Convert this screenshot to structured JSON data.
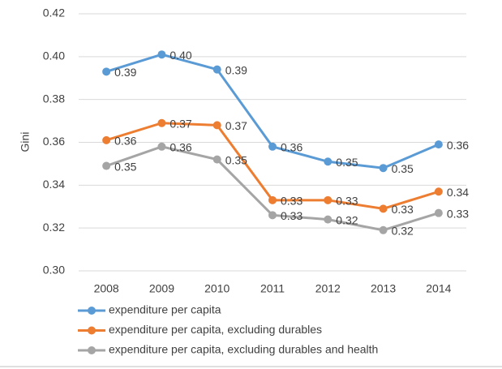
{
  "chart_data": {
    "type": "line",
    "y_label": "Gini",
    "categories": [
      "2008",
      "2009",
      "2010",
      "2011",
      "2012",
      "2013",
      "2014"
    ],
    "ylim": [
      0.3,
      0.42
    ],
    "yticks": [
      {
        "value": 0.3,
        "label": "0.30"
      },
      {
        "value": 0.32,
        "label": "0.32"
      },
      {
        "value": 0.34,
        "label": "0.34"
      },
      {
        "value": 0.36,
        "label": "0.36"
      },
      {
        "value": 0.38,
        "label": "0.38"
      },
      {
        "value": 0.4,
        "label": "0.40"
      },
      {
        "value": 0.42,
        "label": "0.42"
      }
    ],
    "grid": true,
    "legend": "bottom",
    "series": [
      {
        "name": "expenditure per capita",
        "color": "#5b9bd5",
        "values": [
          0.393,
          0.401,
          0.394,
          0.358,
          0.351,
          0.348,
          0.359
        ],
        "value_labels": [
          "0.39",
          "0.40",
          "0.39",
          "0.36",
          "0.35",
          "0.35",
          "0.36"
        ]
      },
      {
        "name": "expenditure per capita, excluding durables",
        "color": "#ed7d31",
        "values": [
          0.361,
          0.369,
          0.368,
          0.333,
          0.333,
          0.329,
          0.337
        ],
        "value_labels": [
          "0.36",
          "0.37",
          "0.37",
          "0.33",
          "0.33",
          "0.33",
          "0.34"
        ]
      },
      {
        "name": "expenditure per capita, excluding durables and health",
        "color": "#a5a5a5",
        "values": [
          0.349,
          0.358,
          0.352,
          0.326,
          0.324,
          0.319,
          0.327
        ],
        "value_labels": [
          "0.35",
          "0.36",
          "0.35",
          "0.33",
          "0.32",
          "0.32",
          "0.33"
        ]
      }
    ]
  }
}
